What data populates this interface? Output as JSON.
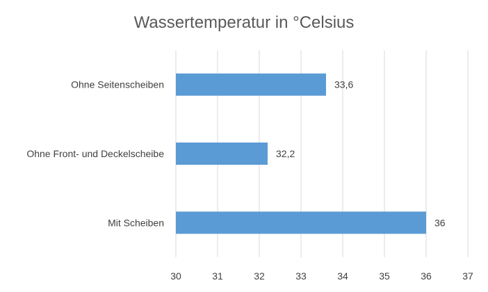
{
  "chart_data": {
    "type": "bar",
    "orientation": "horizontal",
    "title": "Wassertemperatur in °Celsius",
    "categories": [
      "Ohne Seitenscheiben",
      "Ohne Front- und Deckelscheibe",
      "Mit Scheiben"
    ],
    "values": [
      33.6,
      32.2,
      36
    ],
    "value_labels": [
      "33,6",
      "32,2",
      "36"
    ],
    "xlim": [
      30,
      37
    ],
    "x_ticks": [
      30,
      31,
      32,
      33,
      34,
      35,
      36,
      37
    ],
    "grid": true,
    "bar_color": "#5b9bd5"
  }
}
